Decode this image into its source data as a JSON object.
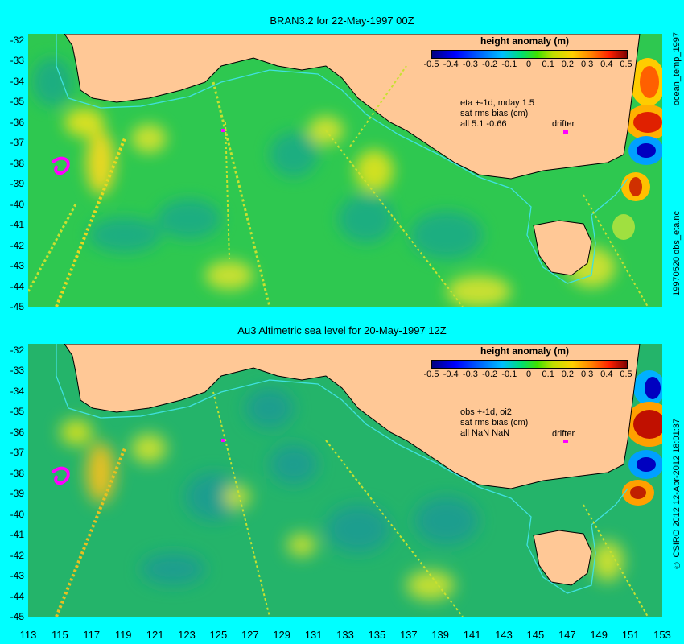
{
  "panels": [
    {
      "title": "BRAN3.2 for 22-May-1997 00Z",
      "colorbar_title": "height anomaly (m)",
      "note_lines": [
        "eta +-1d, mday 1.5",
        "sat rms bias (cm)",
        "all 5.1 -0.66"
      ],
      "drifter_label": "drifter",
      "side_label": "19970520 obs_eta.nc",
      "side_label_top": "ocean_temp_1997"
    },
    {
      "title": "Au3 Altimetric sea level  for 20-May-1997 12Z",
      "colorbar_title": "height anomaly (m)",
      "note_lines": [
        "obs +-1d, oi2",
        "sat rms bias (cm)",
        "all NaN NaN"
      ],
      "drifter_label": "drifter",
      "side_label": "© CSIRO 2012  12-Apr-2012 18:01:37"
    }
  ],
  "colorbar_ticks": [
    "-0.5",
    "-0.4",
    "-0.3",
    "-0.2",
    "-0.1",
    "0",
    "0.1",
    "0.2",
    "0.3",
    "0.4",
    "0.5"
  ],
  "y_ticks": [
    "-32",
    "-33",
    "-34",
    "-35",
    "-36",
    "-37",
    "-38",
    "-39",
    "-40",
    "-41",
    "-42",
    "-43",
    "-44",
    "-45"
  ],
  "x_ticks": [
    "113",
    "115",
    "117",
    "119",
    "121",
    "123",
    "125",
    "127",
    "129",
    "131",
    "133",
    "135",
    "137",
    "139",
    "141",
    "143",
    "145",
    "147",
    "149",
    "151",
    "153"
  ],
  "colors": {
    "background": "#00ffff",
    "land": "#ffc896",
    "ocean_base": "#2ec850",
    "contour_line": "#40e0e0",
    "drifter": "#ff00ff"
  }
}
